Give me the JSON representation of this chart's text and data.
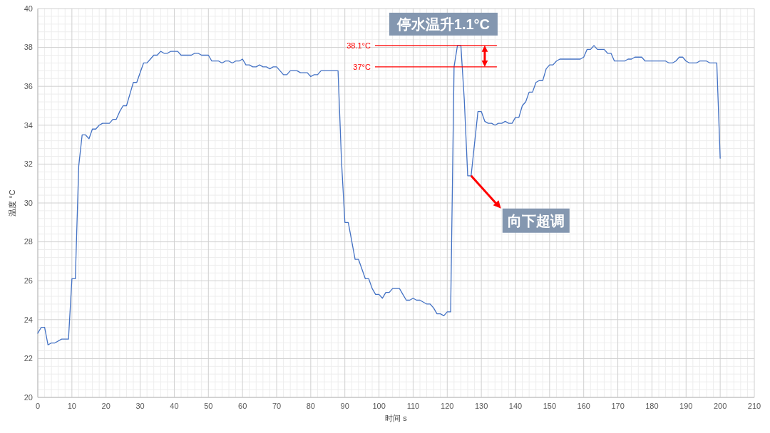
{
  "chart_data": {
    "type": "line",
    "xlabel": "时间 s",
    "ylabel": "温度 °C",
    "xlim": [
      0,
      210
    ],
    "xticks": [
      0,
      10,
      20,
      30,
      40,
      50,
      60,
      70,
      80,
      90,
      100,
      110,
      120,
      130,
      140,
      150,
      160,
      170,
      180,
      190,
      200,
      210
    ],
    "ylim": [
      20,
      40
    ],
    "yticks": [
      20,
      22,
      24,
      26,
      28,
      30,
      32,
      34,
      36,
      38,
      40
    ],
    "grid": true,
    "x": [
      0,
      1,
      2,
      3,
      4,
      5,
      7,
      9,
      10,
      11,
      12,
      13,
      14,
      15,
      16,
      17,
      18,
      19,
      21,
      22,
      23,
      24,
      25,
      26,
      27,
      28,
      29,
      30,
      31,
      32,
      33,
      34,
      35,
      36,
      37,
      38,
      39,
      41,
      42,
      45,
      46,
      47,
      48,
      50,
      51,
      53,
      54,
      55,
      56,
      57,
      58,
      59,
      60,
      61,
      62,
      63,
      64,
      65,
      66,
      67,
      68,
      69,
      70,
      71,
      72,
      73,
      74,
      76,
      77,
      79,
      80,
      81,
      82,
      83,
      88,
      89,
      90,
      91,
      93,
      94,
      96,
      97,
      98,
      99,
      100,
      101,
      102,
      103,
      104,
      106,
      107,
      108,
      109,
      110,
      111,
      112,
      113,
      114,
      115,
      116,
      117,
      118,
      119,
      120,
      121,
      122,
      123,
      124,
      125,
      126,
      127,
      129,
      130,
      131,
      132,
      133,
      134,
      135,
      136,
      137,
      138,
      139,
      140,
      141,
      142,
      143,
      144,
      145,
      146,
      147,
      148,
      149,
      150,
      151,
      152,
      153,
      159,
      160,
      161,
      162,
      163,
      164,
      166,
      167,
      168,
      169,
      172,
      173,
      174,
      175,
      177,
      178,
      184,
      185,
      186,
      187,
      188,
      189,
      190,
      191,
      193,
      194,
      196,
      197,
      199,
      200
    ],
    "series": [
      {
        "color": "#4472c4",
        "values": [
          23.3,
          23.6,
          23.6,
          22.7,
          22.8,
          22.8,
          23.0,
          23.0,
          26.1,
          26.1,
          31.9,
          33.5,
          33.5,
          33.3,
          33.8,
          33.8,
          34.0,
          34.1,
          34.1,
          34.3,
          34.3,
          34.7,
          35.0,
          35.0,
          35.6,
          36.2,
          36.2,
          36.7,
          37.2,
          37.2,
          37.4,
          37.6,
          37.6,
          37.8,
          37.7,
          37.7,
          37.8,
          37.8,
          37.6,
          37.6,
          37.7,
          37.7,
          37.6,
          37.6,
          37.3,
          37.3,
          37.2,
          37.3,
          37.3,
          37.2,
          37.3,
          37.3,
          37.4,
          37.1,
          37.1,
          37.0,
          37.0,
          37.1,
          37.0,
          37.0,
          36.9,
          37.0,
          37.0,
          36.8,
          36.6,
          36.6,
          36.8,
          36.8,
          36.7,
          36.7,
          36.5,
          36.6,
          36.6,
          36.8,
          36.8,
          32.2,
          29.0,
          29.0,
          27.1,
          27.1,
          26.1,
          26.1,
          25.6,
          25.3,
          25.3,
          25.1,
          25.4,
          25.4,
          25.6,
          25.6,
          25.3,
          25.0,
          25.0,
          25.1,
          25.0,
          25.0,
          24.9,
          24.8,
          24.8,
          24.6,
          24.3,
          24.3,
          24.2,
          24.4,
          24.4,
          37.0,
          38.1,
          38.1,
          35.3,
          31.4,
          31.4,
          34.7,
          34.7,
          34.2,
          34.1,
          34.1,
          34.0,
          34.1,
          34.1,
          34.2,
          34.1,
          34.1,
          34.4,
          34.4,
          35.0,
          35.2,
          35.7,
          35.7,
          36.2,
          36.3,
          36.3,
          36.9,
          37.1,
          37.1,
          37.3,
          37.4,
          37.4,
          37.5,
          37.9,
          37.9,
          38.1,
          37.9,
          37.9,
          37.7,
          37.7,
          37.3,
          37.3,
          37.4,
          37.4,
          37.5,
          37.5,
          37.3,
          37.3,
          37.2,
          37.2,
          37.3,
          37.5,
          37.5,
          37.3,
          37.2,
          37.2,
          37.3,
          37.3,
          37.2,
          37.2,
          32.3
        ]
      }
    ],
    "ref_lines": [
      {
        "axis": "y",
        "value": 38.1,
        "label": "38.1°C",
        "color": "#ff0000"
      },
      {
        "axis": "y",
        "value": 37,
        "label": "37°C",
        "color": "#ff0000"
      }
    ],
    "annotations": [
      {
        "text": "停水温升1.1°C",
        "x": 131,
        "y": 38.1
      },
      {
        "text": "向下超调",
        "x": 127,
        "y": 31.4
      }
    ]
  }
}
